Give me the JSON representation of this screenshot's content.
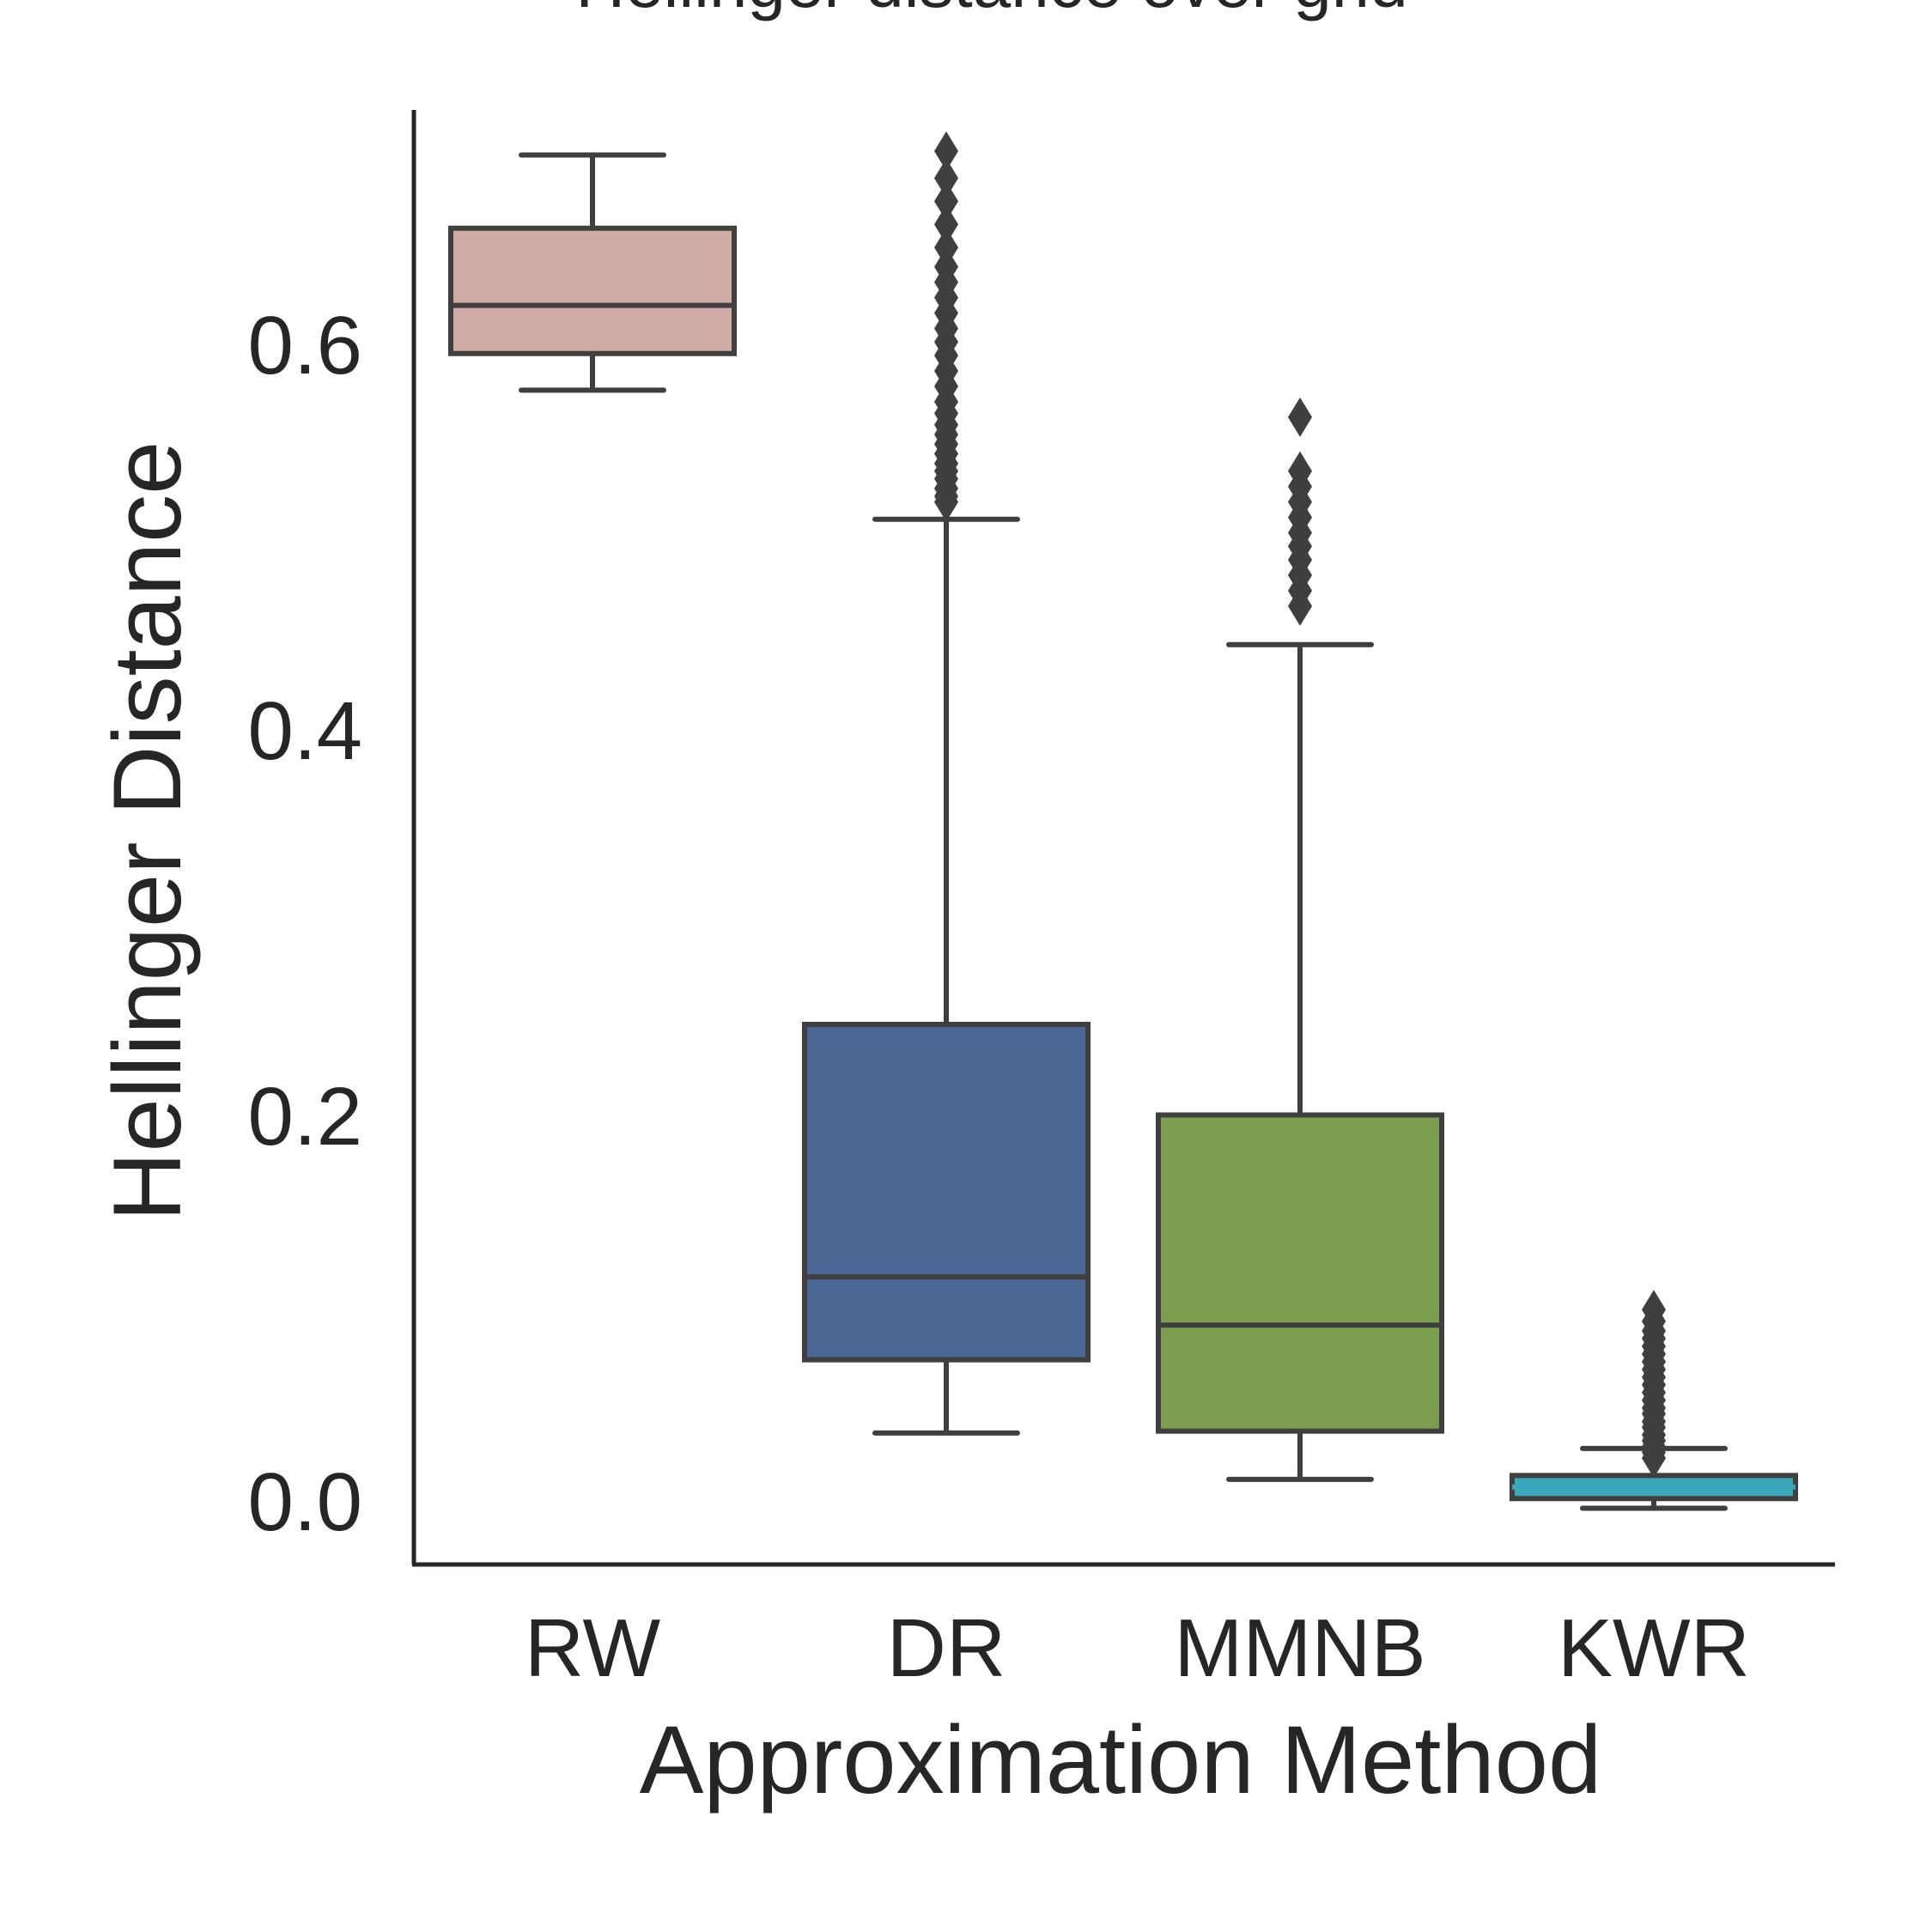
{
  "chart_data": {
    "type": "boxplot",
    "title": "Hellinger distance over grid",
    "xlabel": "Approximation Method",
    "ylabel": "Hellinger Distance",
    "ylim": [
      -0.035,
      0.735
    ],
    "yticks": [
      0.0,
      0.2,
      0.4,
      0.6
    ],
    "ytick_labels": [
      "0.0",
      "0.2",
      "0.4",
      "0.6"
    ],
    "grid": false,
    "categories": [
      "RW",
      "DR",
      "MMNB",
      "KWR"
    ],
    "boxes": [
      {
        "label": "RW",
        "color": "#d1aba6",
        "whisker_low": 0.578,
        "q1": 0.597,
        "median": 0.622,
        "q3": 0.662,
        "whisker_high": 0.7,
        "outliers": []
      },
      {
        "label": "DR",
        "color": "#4b6795",
        "whisker_low": 0.037,
        "q1": 0.075,
        "median": 0.118,
        "q3": 0.249,
        "whisker_high": 0.511,
        "outliers": [
          0.52,
          0.523,
          0.527,
          0.532,
          0.536,
          0.54,
          0.545,
          0.55,
          0.555,
          0.56,
          0.566,
          0.572,
          0.58,
          0.588,
          0.596,
          0.603,
          0.61,
          0.618,
          0.626,
          0.634,
          0.642,
          0.652,
          0.664,
          0.676,
          0.688,
          0.702
        ]
      },
      {
        "label": "MMNB",
        "color": "#7b9f4f",
        "whisker_low": 0.013,
        "q1": 0.038,
        "median": 0.093,
        "q3": 0.202,
        "whisker_high": 0.446,
        "outliers": [
          0.466,
          0.474,
          0.482,
          0.49,
          0.497,
          0.504,
          0.512,
          0.52,
          0.528,
          0.536,
          0.564
        ]
      },
      {
        "label": "KWR",
        "color": "#3aa8ba",
        "whisker_low": -0.002,
        "q1": 0.003,
        "median": 0.009,
        "q3": 0.015,
        "whisker_high": 0.029,
        "outliers": [
          0.024,
          0.027,
          0.03,
          0.033,
          0.036,
          0.04,
          0.043,
          0.047,
          0.05,
          0.054,
          0.058,
          0.062,
          0.066,
          0.07,
          0.074,
          0.078,
          0.082,
          0.086,
          0.09,
          0.095,
          0.101
        ]
      }
    ]
  }
}
